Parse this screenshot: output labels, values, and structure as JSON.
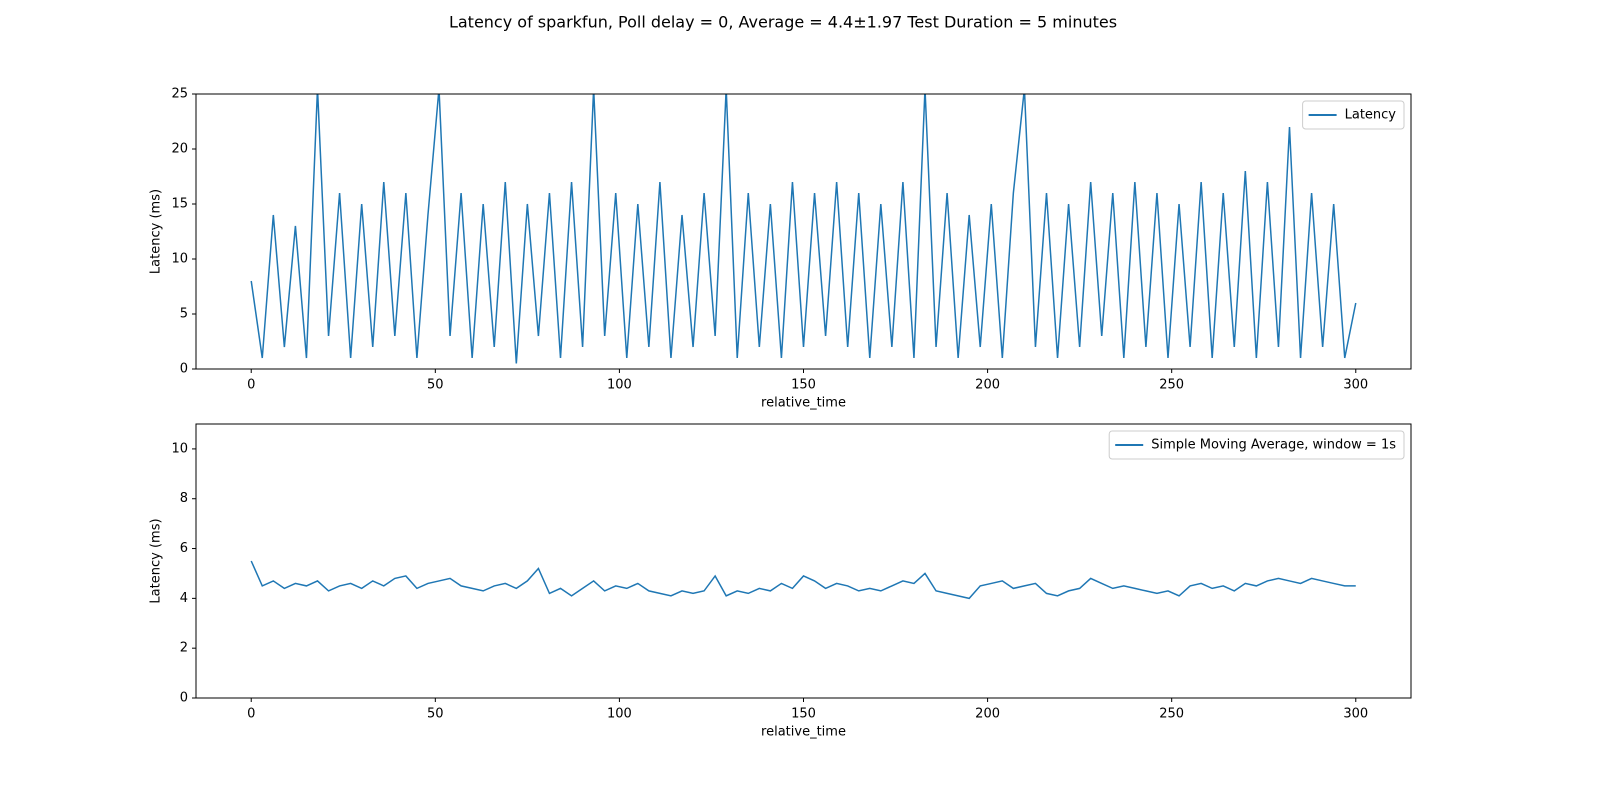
{
  "chart_data": [
    {
      "type": "line",
      "title": "Latency of sparkfun, Poll delay = 0, Average = 4.4±1.97 Test Duration = 5 minutes",
      "x_label": "relative_time",
      "y_label": "Latency (ms)",
      "legend": "upper right",
      "x": [
        0,
        3,
        6,
        9,
        12,
        15,
        18,
        21,
        24,
        27,
        30,
        33,
        36,
        39,
        42,
        45,
        48,
        51,
        54,
        57,
        60,
        63,
        66,
        69,
        72,
        75,
        78,
        81,
        84,
        87,
        90,
        93,
        96,
        99,
        102,
        105,
        108,
        111,
        114,
        117,
        120,
        123,
        126,
        129,
        132,
        135,
        138,
        141,
        144,
        147,
        150,
        153,
        156,
        159,
        162,
        165,
        168,
        171,
        174,
        177,
        180,
        183,
        186,
        189,
        192,
        195,
        198,
        201,
        204,
        207,
        210,
        213,
        216,
        219,
        222,
        225,
        228,
        231,
        234,
        237,
        240,
        243,
        246,
        249,
        252,
        255,
        258,
        261,
        264,
        267,
        270,
        273,
        276,
        279,
        282,
        285,
        288,
        291,
        294,
        297,
        300
      ],
      "series": [
        {
          "name": "Latency",
          "color": "#1f77b4",
          "values": [
            8,
            1,
            14,
            2,
            13,
            1,
            25.5,
            3,
            16,
            1,
            15,
            2,
            17,
            3,
            16,
            1,
            14,
            25.5,
            3,
            16,
            1,
            15,
            2,
            17,
            0.5,
            15,
            3,
            16,
            1,
            17,
            2,
            25.5,
            3,
            16,
            1,
            15,
            2,
            17,
            1,
            14,
            2,
            16,
            3,
            25.5,
            1,
            16,
            2,
            15,
            1,
            17,
            2,
            16,
            3,
            17,
            2,
            16,
            1,
            15,
            2,
            17,
            1,
            25.5,
            2,
            16,
            1,
            14,
            2,
            15,
            1,
            16,
            25.5,
            2,
            16,
            1,
            15,
            2,
            17,
            3,
            16,
            1,
            17,
            2,
            16,
            1,
            15,
            2,
            17,
            1,
            16,
            2,
            18,
            1,
            17,
            2,
            22,
            1,
            16,
            2,
            15,
            1,
            6
          ]
        }
      ],
      "xlim": [
        -15,
        315
      ],
      "xticks": [
        0,
        50,
        100,
        150,
        200,
        250,
        300
      ],
      "ylim": [
        0,
        25
      ],
      "yticks": [
        0,
        5,
        10,
        15,
        20,
        25
      ]
    },
    {
      "type": "line",
      "x_label": "relative_time",
      "y_label": "Latency (ms)",
      "legend": "upper right",
      "x": [
        0,
        3,
        6,
        9,
        12,
        15,
        18,
        21,
        24,
        27,
        30,
        33,
        36,
        39,
        42,
        45,
        48,
        51,
        54,
        57,
        60,
        63,
        66,
        69,
        72,
        75,
        78,
        81,
        84,
        87,
        90,
        93,
        96,
        99,
        102,
        105,
        108,
        111,
        114,
        117,
        120,
        123,
        126,
        129,
        132,
        135,
        138,
        141,
        144,
        147,
        150,
        153,
        156,
        159,
        162,
        165,
        168,
        171,
        174,
        177,
        180,
        183,
        186,
        189,
        192,
        195,
        198,
        201,
        204,
        207,
        210,
        213,
        216,
        219,
        222,
        225,
        228,
        231,
        234,
        237,
        240,
        243,
        246,
        249,
        252,
        255,
        258,
        261,
        264,
        267,
        270,
        273,
        276,
        279,
        282,
        285,
        288,
        291,
        294,
        297,
        300
      ],
      "series": [
        {
          "name": "Simple Moving Average, window = 1s",
          "color": "#1f77b4",
          "values": [
            5.5,
            4.5,
            4.7,
            4.4,
            4.6,
            4.5,
            4.7,
            4.3,
            4.5,
            4.6,
            4.4,
            4.7,
            4.5,
            4.8,
            4.9,
            4.4,
            4.6,
            4.7,
            4.8,
            4.5,
            4.4,
            4.3,
            4.5,
            4.6,
            4.4,
            4.7,
            5.2,
            4.2,
            4.4,
            4.1,
            4.4,
            4.7,
            4.3,
            4.5,
            4.4,
            4.6,
            4.3,
            4.2,
            4.1,
            4.3,
            4.2,
            4.3,
            4.9,
            4.1,
            4.3,
            4.2,
            4.4,
            4.3,
            4.6,
            4.4,
            4.9,
            4.7,
            4.4,
            4.6,
            4.5,
            4.3,
            4.4,
            4.3,
            4.5,
            4.7,
            4.6,
            5.0,
            4.3,
            4.2,
            4.1,
            4.0,
            4.5,
            4.6,
            4.7,
            4.4,
            4.5,
            4.6,
            4.2,
            4.1,
            4.3,
            4.4,
            4.8,
            4.6,
            4.4,
            4.5,
            4.4,
            4.3,
            4.2,
            4.3,
            4.1,
            4.5,
            4.6,
            4.4,
            4.5,
            4.3,
            4.6,
            4.5,
            4.7,
            4.8,
            4.7,
            4.6,
            4.8,
            4.7,
            4.6,
            4.5,
            4.5
          ]
        }
      ],
      "xlim": [
        -15,
        315
      ],
      "xticks": [
        0,
        50,
        100,
        150,
        200,
        250,
        300
      ],
      "ylim": [
        0,
        11
      ],
      "yticks": [
        0,
        2,
        4,
        6,
        8,
        10
      ]
    }
  ]
}
